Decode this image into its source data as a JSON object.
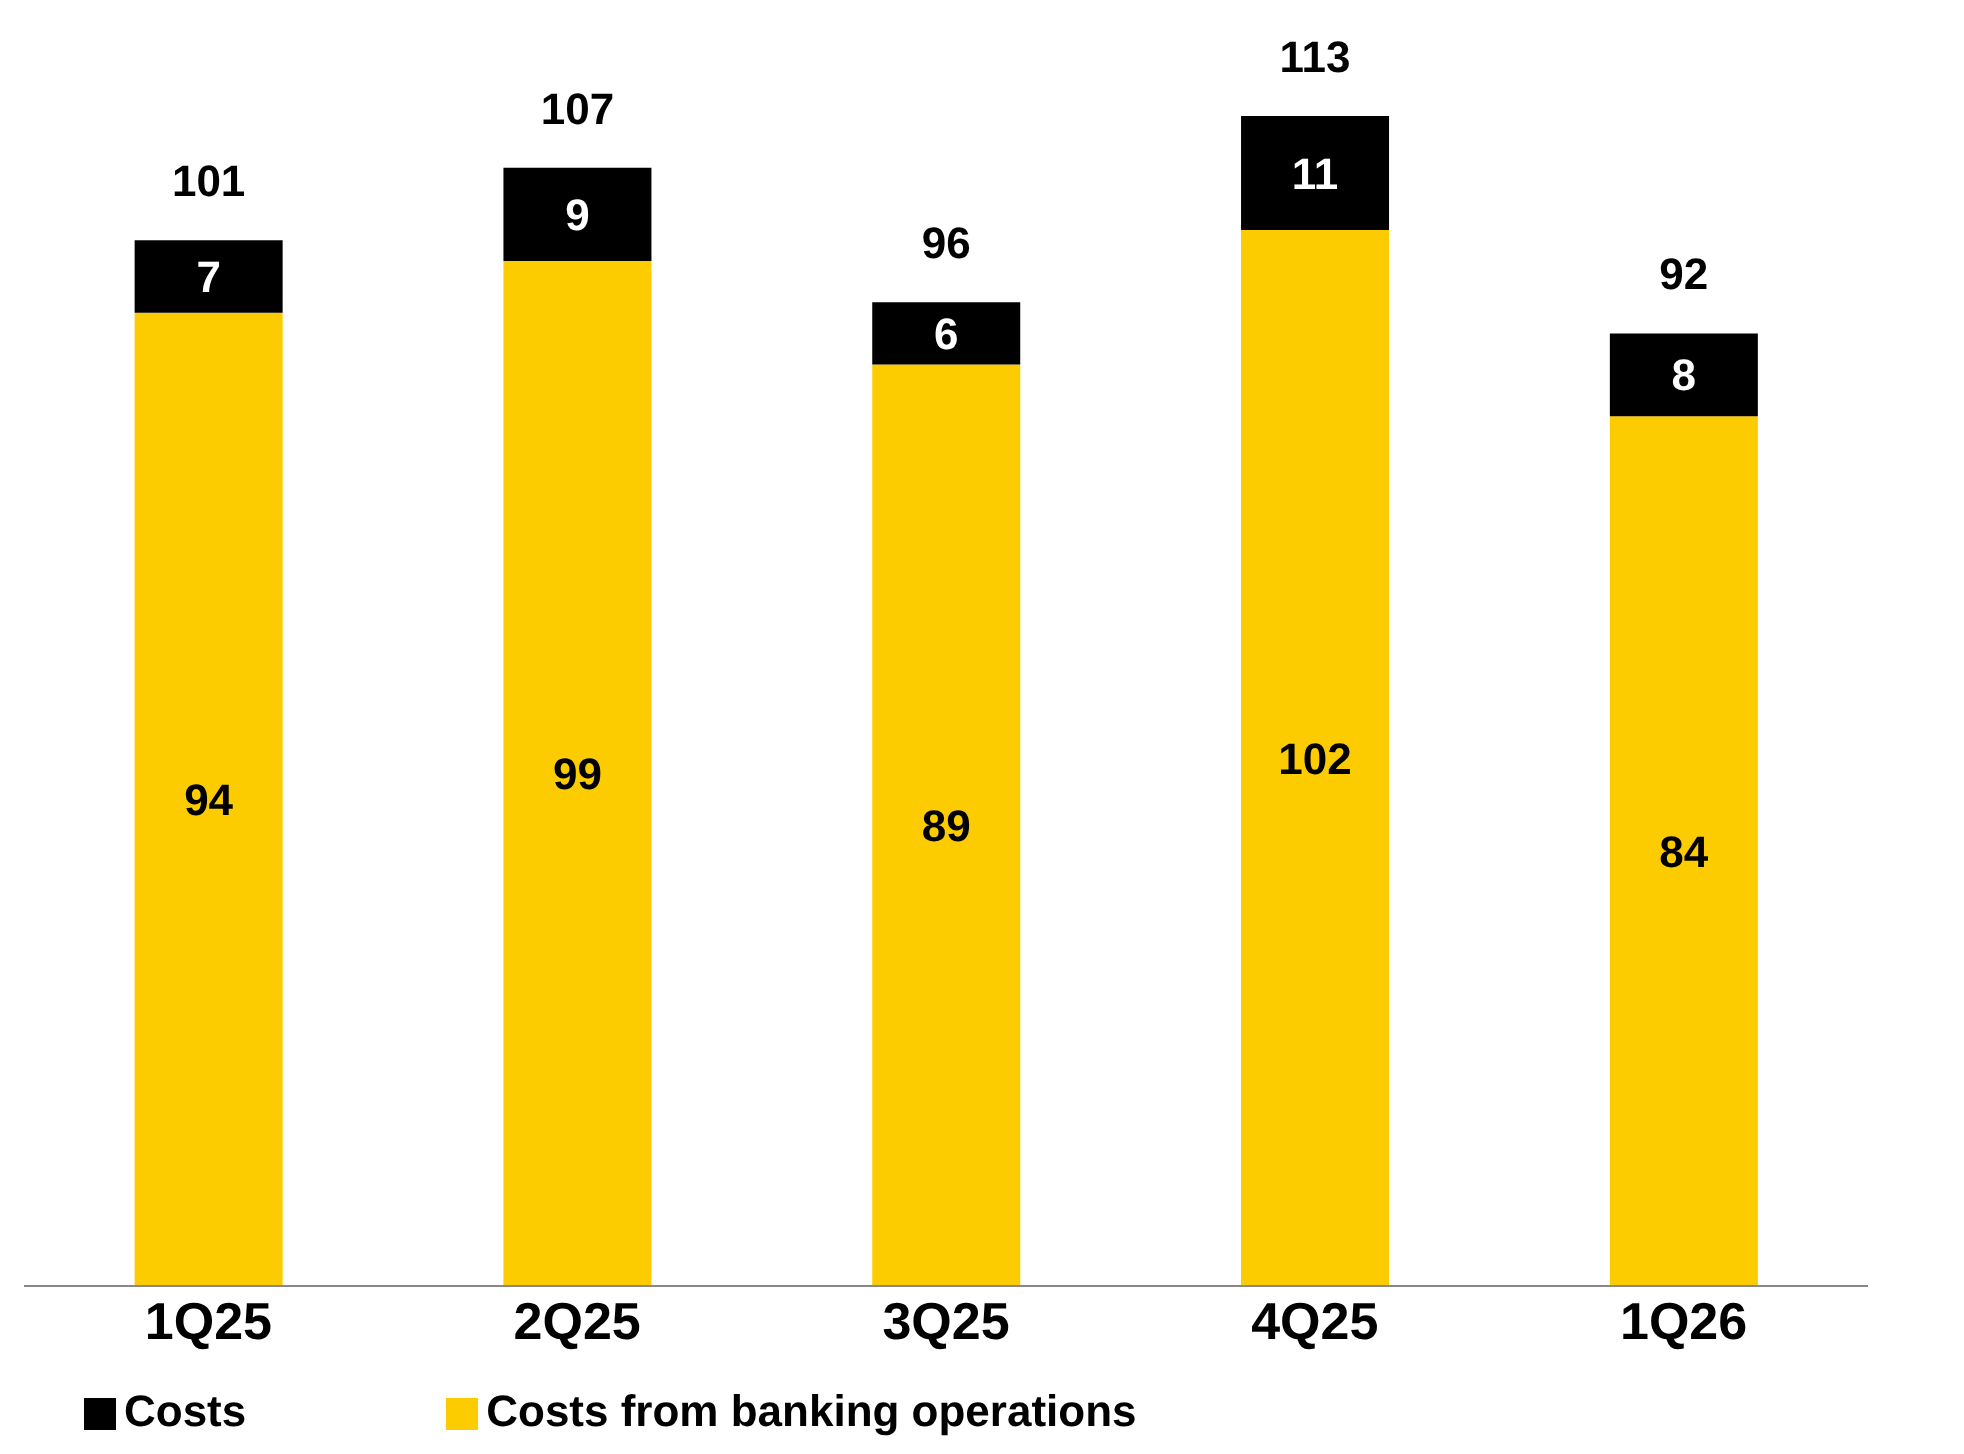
{
  "chart_data": {
    "type": "bar",
    "stacked": true,
    "categories": [
      "1Q25",
      "2Q25",
      "3Q25",
      "4Q25",
      "1Q26"
    ],
    "series": [
      {
        "name": "Costs from banking operations",
        "color": "#fccc00",
        "values": [
          94,
          99,
          89,
          102,
          84
        ]
      },
      {
        "name": "Costs",
        "color": "#000000",
        "values": [
          7,
          9,
          6,
          11,
          8
        ]
      }
    ],
    "data_labels": true,
    "totals": [
      "101",
      "107",
      "96",
      "113",
      "92"
    ],
    "legend": "bottom left",
    "grid": false
  }
}
